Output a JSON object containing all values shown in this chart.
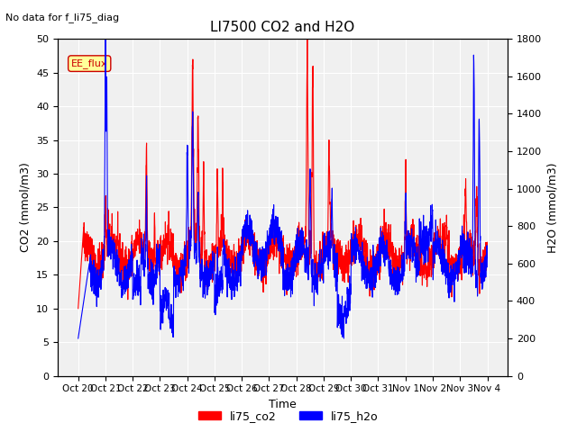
{
  "title": "LI7500 CO2 and H2O",
  "suptitle": "No data for f_li75_diag",
  "xlabel": "Time",
  "ylabel_left": "CO2 (mmol/m3)",
  "ylabel_right": "H2O (mmol/m3)",
  "ylim_left": [
    0,
    50
  ],
  "ylim_right": [
    0,
    1800
  ],
  "legend_labels": [
    "li75_co2",
    "li75_h2o"
  ],
  "legend_colors": [
    "red",
    "blue"
  ],
  "annotation_text": "EE_flux",
  "annotation_color": "#cc0000",
  "annotation_bg": "#ffff99",
  "xtick_labels": [
    "Oct 20",
    "Oct 21",
    "Oct 22",
    "Oct 23",
    "Oct 24",
    "Oct 25",
    "Oct 26",
    "Oct 27",
    "Oct 28",
    "Oct 29",
    "Oct 30",
    "Oct 31",
    "Nov 1",
    "Nov 2",
    "Nov 3",
    "Nov 4"
  ],
  "n_points": 2160,
  "background_color": "#e8e8e8",
  "plot_bg": "#f0f0f0",
  "linewidth": 0.8
}
